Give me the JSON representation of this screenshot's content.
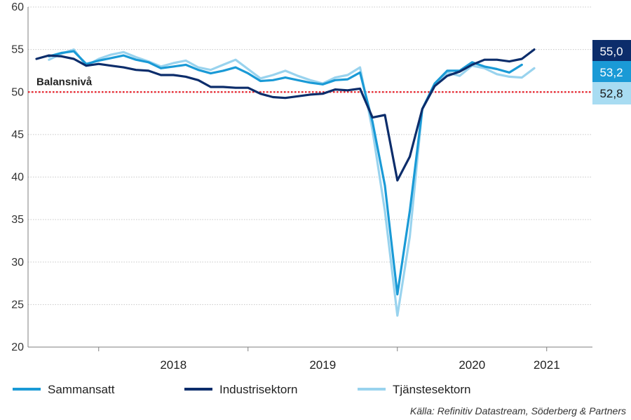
{
  "chart_data": {
    "type": "line",
    "ylim": [
      20,
      60
    ],
    "yticks": [
      20,
      25,
      30,
      35,
      40,
      45,
      50,
      55,
      60
    ],
    "x_range": [
      "2017-08",
      "2021-04"
    ],
    "year_labels": [
      {
        "label": "2018",
        "x": "2018-07"
      },
      {
        "label": "2019",
        "x": "2019-07"
      },
      {
        "label": "2020",
        "x": "2020-07"
      },
      {
        "label": "2021",
        "x": "2021-01"
      }
    ],
    "reference_line": {
      "value": 50,
      "label": "Balansnivå",
      "color": "#e8202a"
    },
    "series": [
      {
        "name": "Sammansatt",
        "color": "#1a9ad6",
        "end_label": "53,2",
        "start": "2017-09",
        "values": [
          54.2,
          54.6,
          54.8,
          53.3,
          53.7,
          54.0,
          54.3,
          53.8,
          53.5,
          52.8,
          53.0,
          53.2,
          52.6,
          52.2,
          52.5,
          52.9,
          52.2,
          51.3,
          51.4,
          51.7,
          51.4,
          51.1,
          50.9,
          51.4,
          51.5,
          52.3,
          46.5,
          39.0,
          26.2,
          36.0,
          48.0,
          51.0,
          52.5,
          52.5,
          53.5,
          53.0,
          52.7,
          52.3,
          53.2
        ]
      },
      {
        "name": "Industrisektorn",
        "color": "#0c2d6b",
        "end_label": "55,0",
        "start": "2017-08",
        "values": [
          53.9,
          54.3,
          54.2,
          53.9,
          53.1,
          53.3,
          53.1,
          52.9,
          52.6,
          52.5,
          52.0,
          52.0,
          51.8,
          51.4,
          50.6,
          50.6,
          50.5,
          50.5,
          49.8,
          49.4,
          49.3,
          49.5,
          49.7,
          49.8,
          50.3,
          50.2,
          50.4,
          47.0,
          47.3,
          39.6,
          42.4,
          48.0,
          50.7,
          51.9,
          52.4,
          53.2,
          53.8,
          53.8,
          53.6,
          53.9,
          55.0
        ]
      },
      {
        "name": "Tjänstesektorn",
        "color": "#99d3ee",
        "end_label": "52,8",
        "start": "2017-09",
        "values": [
          53.8,
          54.5,
          55.0,
          53.1,
          53.9,
          54.4,
          54.7,
          54.1,
          53.6,
          53.0,
          53.4,
          53.7,
          52.9,
          52.6,
          53.2,
          53.8,
          52.7,
          51.6,
          52.0,
          52.5,
          51.9,
          51.4,
          51.0,
          51.7,
          52.0,
          52.9,
          45.5,
          36.0,
          23.7,
          33.0,
          48.0,
          50.7,
          52.3,
          51.9,
          53.1,
          52.8,
          52.1,
          51.8,
          51.7,
          52.8
        ]
      }
    ],
    "source": "Källa: Refinitiv Datastream, Söderberg & Partners"
  }
}
